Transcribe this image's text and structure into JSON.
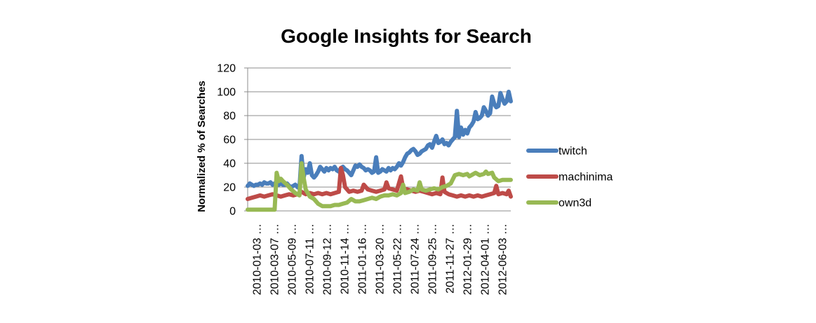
{
  "chart_data": {
    "type": "line",
    "title": "Google Insights for Search",
    "ylabel": "Normalized % of Searches",
    "xlabel": "",
    "ylim": [
      0,
      120
    ],
    "yticks": [
      0,
      20,
      40,
      60,
      80,
      100,
      120
    ],
    "grid": "horizontal",
    "legend_position": "right",
    "categories": [
      "2010-01-03 …",
      "2010-03-07 …",
      "2010-05-09 …",
      "2010-07-11 …",
      "2010-09-12 …",
      "2010-11-14 …",
      "2011-01-16 …",
      "2011-03-20 …",
      "2011-05-22 …",
      "2011-07-24 …",
      "2011-09-25 …",
      "2011-11-27 …",
      "2012-01-29 …",
      "2012-04-01 …",
      "2012-06-03 …"
    ],
    "x_start": "2010-01-03",
    "x_end": "2012-06-10",
    "series": [
      {
        "name": "twitch",
        "color": "#4a7ebb",
        "points": [
          [
            "2010-01-03",
            21
          ],
          [
            "2010-01-10",
            23
          ],
          [
            "2010-01-17",
            22
          ],
          [
            "2010-01-24",
            21
          ],
          [
            "2010-01-31",
            22
          ],
          [
            "2010-02-07",
            22
          ],
          [
            "2010-02-14",
            23
          ],
          [
            "2010-02-21",
            22
          ],
          [
            "2010-02-28",
            24
          ],
          [
            "2010-03-07",
            23
          ],
          [
            "2010-03-14",
            23
          ],
          [
            "2010-03-21",
            24
          ],
          [
            "2010-03-28",
            22
          ],
          [
            "2010-04-04",
            23
          ],
          [
            "2010-04-11",
            24
          ],
          [
            "2010-04-18",
            22
          ],
          [
            "2010-04-25",
            23
          ],
          [
            "2010-05-02",
            22
          ],
          [
            "2010-05-09",
            22
          ],
          [
            "2010-05-16",
            23
          ],
          [
            "2010-05-23",
            21
          ],
          [
            "2010-05-30",
            20
          ],
          [
            "2010-06-06",
            21
          ],
          [
            "2010-06-13",
            22
          ],
          [
            "2010-06-20",
            20
          ],
          [
            "2010-06-27",
            19
          ],
          [
            "2010-07-04",
            46
          ],
          [
            "2010-07-11",
            28
          ],
          [
            "2010-07-18",
            35
          ],
          [
            "2010-07-25",
            32
          ],
          [
            "2010-08-01",
            40
          ],
          [
            "2010-08-08",
            30
          ],
          [
            "2010-08-15",
            28
          ],
          [
            "2010-08-22",
            30
          ],
          [
            "2010-08-29",
            33
          ],
          [
            "2010-09-05",
            37
          ],
          [
            "2010-09-12",
            35
          ],
          [
            "2010-09-19",
            33
          ],
          [
            "2010-09-26",
            36
          ],
          [
            "2010-10-03",
            34
          ],
          [
            "2010-10-10",
            36
          ],
          [
            "2010-10-17",
            35
          ],
          [
            "2010-10-24",
            37
          ],
          [
            "2010-10-31",
            34
          ],
          [
            "2010-11-07",
            33
          ],
          [
            "2010-11-14",
            36
          ],
          [
            "2010-11-21",
            37
          ],
          [
            "2010-11-28",
            35
          ],
          [
            "2010-12-05",
            34
          ],
          [
            "2010-12-12",
            32
          ],
          [
            "2010-12-19",
            30
          ],
          [
            "2010-12-26",
            34
          ],
          [
            "2011-01-02",
            38
          ],
          [
            "2011-01-09",
            37
          ],
          [
            "2011-01-16",
            39
          ],
          [
            "2011-01-23",
            37
          ],
          [
            "2011-01-30",
            36
          ],
          [
            "2011-02-06",
            34
          ],
          [
            "2011-02-13",
            35
          ],
          [
            "2011-02-20",
            34
          ],
          [
            "2011-02-27",
            32
          ],
          [
            "2011-03-06",
            33
          ],
          [
            "2011-03-13",
            45
          ],
          [
            "2011-03-20",
            32
          ],
          [
            "2011-03-27",
            33
          ],
          [
            "2011-04-03",
            35
          ],
          [
            "2011-04-10",
            34
          ],
          [
            "2011-04-17",
            33
          ],
          [
            "2011-04-24",
            36
          ],
          [
            "2011-05-01",
            34
          ],
          [
            "2011-05-08",
            36
          ],
          [
            "2011-05-15",
            35
          ],
          [
            "2011-05-22",
            37
          ],
          [
            "2011-05-29",
            40
          ],
          [
            "2011-06-05",
            38
          ],
          [
            "2011-06-12",
            41
          ],
          [
            "2011-06-19",
            45
          ],
          [
            "2011-06-26",
            48
          ],
          [
            "2011-07-03",
            49
          ],
          [
            "2011-07-10",
            51
          ],
          [
            "2011-07-17",
            52
          ],
          [
            "2011-07-24",
            50
          ],
          [
            "2011-07-31",
            47
          ],
          [
            "2011-08-07",
            48
          ],
          [
            "2011-08-14",
            50
          ],
          [
            "2011-08-21",
            51
          ],
          [
            "2011-08-28",
            52
          ],
          [
            "2011-09-04",
            55
          ],
          [
            "2011-09-11",
            56
          ],
          [
            "2011-09-18",
            53
          ],
          [
            "2011-09-25",
            58
          ],
          [
            "2011-10-02",
            63
          ],
          [
            "2011-10-09",
            57
          ],
          [
            "2011-10-16",
            58
          ],
          [
            "2011-10-23",
            60
          ],
          [
            "2011-10-30",
            56
          ],
          [
            "2011-11-06",
            57
          ],
          [
            "2011-11-13",
            55
          ],
          [
            "2011-11-20",
            58
          ],
          [
            "2011-11-27",
            60
          ],
          [
            "2011-12-04",
            62
          ],
          [
            "2011-12-11",
            84
          ],
          [
            "2011-12-18",
            62
          ],
          [
            "2011-12-25",
            70
          ],
          [
            "2012-01-01",
            64
          ],
          [
            "2012-01-08",
            68
          ],
          [
            "2012-01-15",
            65
          ],
          [
            "2012-01-22",
            70
          ],
          [
            "2012-01-29",
            72
          ],
          [
            "2012-02-05",
            75
          ],
          [
            "2012-02-12",
            83
          ],
          [
            "2012-02-19",
            77
          ],
          [
            "2012-02-26",
            78
          ],
          [
            "2012-03-04",
            80
          ],
          [
            "2012-03-11",
            87
          ],
          [
            "2012-03-18",
            84
          ],
          [
            "2012-03-25",
            80
          ],
          [
            "2012-04-01",
            82
          ],
          [
            "2012-04-08",
            96
          ],
          [
            "2012-04-15",
            90
          ],
          [
            "2012-04-22",
            87
          ],
          [
            "2012-04-29",
            88
          ],
          [
            "2012-05-06",
            99
          ],
          [
            "2012-05-13",
            94
          ],
          [
            "2012-05-20",
            90
          ],
          [
            "2012-05-27",
            92
          ],
          [
            "2012-06-03",
            100
          ],
          [
            "2012-06-10",
            92
          ]
        ]
      },
      {
        "name": "machinima",
        "color": "#be4b48",
        "points": [
          [
            "2010-01-03",
            10
          ],
          [
            "2010-01-17",
            11
          ],
          [
            "2010-01-31",
            12
          ],
          [
            "2010-02-14",
            13
          ],
          [
            "2010-02-28",
            12
          ],
          [
            "2010-03-14",
            13
          ],
          [
            "2010-03-28",
            14
          ],
          [
            "2010-04-11",
            13
          ],
          [
            "2010-04-25",
            12
          ],
          [
            "2010-05-09",
            13
          ],
          [
            "2010-05-23",
            14
          ],
          [
            "2010-06-06",
            13
          ],
          [
            "2010-06-20",
            14
          ],
          [
            "2010-07-04",
            16
          ],
          [
            "2010-07-18",
            14
          ],
          [
            "2010-08-01",
            15
          ],
          [
            "2010-08-15",
            14
          ],
          [
            "2010-08-29",
            15
          ],
          [
            "2010-09-12",
            14
          ],
          [
            "2010-09-26",
            15
          ],
          [
            "2010-10-10",
            14
          ],
          [
            "2010-10-24",
            15
          ],
          [
            "2010-11-07",
            16
          ],
          [
            "2010-11-14",
            36
          ],
          [
            "2010-11-21",
            30
          ],
          [
            "2010-11-28",
            20
          ],
          [
            "2010-12-12",
            16
          ],
          [
            "2010-12-26",
            17
          ],
          [
            "2011-01-09",
            16
          ],
          [
            "2011-01-23",
            17
          ],
          [
            "2011-01-30",
            22
          ],
          [
            "2011-02-13",
            18
          ],
          [
            "2011-02-27",
            17
          ],
          [
            "2011-03-13",
            16
          ],
          [
            "2011-03-27",
            17
          ],
          [
            "2011-04-10",
            18
          ],
          [
            "2011-04-17",
            24
          ],
          [
            "2011-04-24",
            19
          ],
          [
            "2011-05-08",
            18
          ],
          [
            "2011-05-22",
            17
          ],
          [
            "2011-06-05",
            29
          ],
          [
            "2011-06-12",
            19
          ],
          [
            "2011-06-26",
            18
          ],
          [
            "2011-07-10",
            17
          ],
          [
            "2011-07-24",
            16
          ],
          [
            "2011-08-07",
            17
          ],
          [
            "2011-08-21",
            16
          ],
          [
            "2011-09-04",
            15
          ],
          [
            "2011-09-18",
            14
          ],
          [
            "2011-10-02",
            15
          ],
          [
            "2011-10-16",
            14
          ],
          [
            "2011-10-23",
            28
          ],
          [
            "2011-10-30",
            16
          ],
          [
            "2011-11-13",
            14
          ],
          [
            "2011-11-27",
            13
          ],
          [
            "2011-12-11",
            12
          ],
          [
            "2011-12-25",
            13
          ],
          [
            "2012-01-08",
            12
          ],
          [
            "2012-01-22",
            13
          ],
          [
            "2012-02-05",
            12
          ],
          [
            "2012-02-19",
            13
          ],
          [
            "2012-03-04",
            12
          ],
          [
            "2012-03-18",
            13
          ],
          [
            "2012-04-01",
            14
          ],
          [
            "2012-04-15",
            15
          ],
          [
            "2012-04-22",
            21
          ],
          [
            "2012-04-29",
            14
          ],
          [
            "2012-05-13",
            15
          ],
          [
            "2012-05-27",
            14
          ],
          [
            "2012-06-03",
            17
          ],
          [
            "2012-06-10",
            12
          ]
        ]
      },
      {
        "name": "own3d",
        "color": "#98b954",
        "points": [
          [
            "2010-01-03",
            1
          ],
          [
            "2010-01-31",
            1
          ],
          [
            "2010-02-28",
            1
          ],
          [
            "2010-03-14",
            1
          ],
          [
            "2010-03-28",
            1
          ],
          [
            "2010-04-04",
            1
          ],
          [
            "2010-04-11",
            32
          ],
          [
            "2010-04-18",
            25
          ],
          [
            "2010-04-25",
            27
          ],
          [
            "2010-05-02",
            25
          ],
          [
            "2010-05-16",
            22
          ],
          [
            "2010-05-30",
            18
          ],
          [
            "2010-06-13",
            15
          ],
          [
            "2010-06-27",
            13
          ],
          [
            "2010-07-04",
            40
          ],
          [
            "2010-07-11",
            28
          ],
          [
            "2010-07-18",
            18
          ],
          [
            "2010-08-01",
            12
          ],
          [
            "2010-08-15",
            10
          ],
          [
            "2010-08-29",
            6
          ],
          [
            "2010-09-12",
            4
          ],
          [
            "2010-09-26",
            4
          ],
          [
            "2010-10-10",
            4
          ],
          [
            "2010-10-24",
            5
          ],
          [
            "2010-11-07",
            5
          ],
          [
            "2010-11-21",
            6
          ],
          [
            "2010-12-05",
            7
          ],
          [
            "2010-12-19",
            10
          ],
          [
            "2011-01-02",
            8
          ],
          [
            "2011-01-16",
            8
          ],
          [
            "2011-01-30",
            9
          ],
          [
            "2011-02-13",
            10
          ],
          [
            "2011-02-27",
            11
          ],
          [
            "2011-03-13",
            10
          ],
          [
            "2011-03-27",
            12
          ],
          [
            "2011-04-10",
            13
          ],
          [
            "2011-04-24",
            13
          ],
          [
            "2011-05-08",
            14
          ],
          [
            "2011-05-22",
            13
          ],
          [
            "2011-06-05",
            15
          ],
          [
            "2011-06-12",
            22
          ],
          [
            "2011-06-19",
            15
          ],
          [
            "2011-07-03",
            16
          ],
          [
            "2011-07-17",
            18
          ],
          [
            "2011-07-31",
            17
          ],
          [
            "2011-08-07",
            24
          ],
          [
            "2011-08-14",
            18
          ],
          [
            "2011-08-28",
            17
          ],
          [
            "2011-09-11",
            18
          ],
          [
            "2011-09-25",
            19
          ],
          [
            "2011-10-09",
            18
          ],
          [
            "2011-10-23",
            20
          ],
          [
            "2011-11-06",
            21
          ],
          [
            "2011-11-20",
            23
          ],
          [
            "2011-12-04",
            30
          ],
          [
            "2011-12-18",
            31
          ],
          [
            "2012-01-01",
            30
          ],
          [
            "2012-01-15",
            31
          ],
          [
            "2012-01-22",
            29
          ],
          [
            "2012-01-29",
            30
          ],
          [
            "2012-02-12",
            32
          ],
          [
            "2012-02-26",
            30
          ],
          [
            "2012-03-11",
            31
          ],
          [
            "2012-03-18",
            33
          ],
          [
            "2012-03-25",
            31
          ],
          [
            "2012-04-08",
            32
          ],
          [
            "2012-04-15",
            28
          ],
          [
            "2012-04-29",
            25
          ],
          [
            "2012-05-13",
            26
          ],
          [
            "2012-05-27",
            26
          ],
          [
            "2012-06-10",
            26
          ]
        ]
      }
    ]
  }
}
